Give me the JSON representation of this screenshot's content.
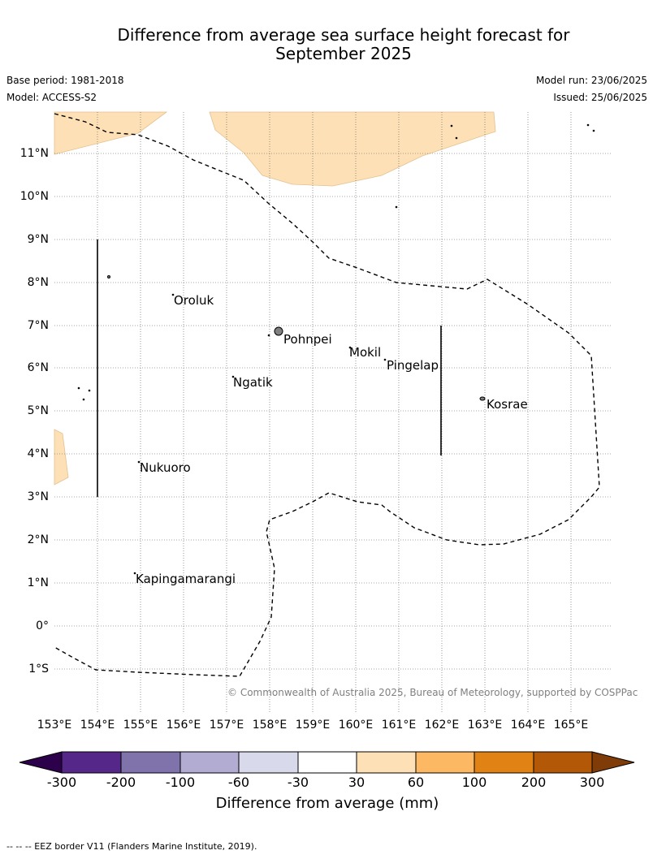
{
  "header": {
    "title_line1": "Difference from average sea surface height forecast for",
    "title_line2": "September 2025",
    "base_period": "Base period: 1981-2018",
    "model": "Model: ACCESS-S2",
    "model_run": "Model run: 23/06/2025",
    "issued": "Issued: 25/06/2025"
  },
  "map": {
    "lon_labels": [
      "153°E",
      "154°E",
      "155°E",
      "156°E",
      "157°E",
      "158°E",
      "159°E",
      "160°E",
      "161°E",
      "162°E",
      "163°E",
      "164°E",
      "165°E"
    ],
    "lat_labels": [
      "11°N",
      "10°N",
      "9°N",
      "8°N",
      "7°N",
      "6°N",
      "5°N",
      "4°N",
      "3°N",
      "2°N",
      "1°N",
      "0°",
      "1°S"
    ],
    "places": [
      "Oroluk",
      "Pohnpei",
      "Mokil",
      "Pingelap",
      "Ngatik",
      "Kosrae",
      "Nukuoro",
      "Kapingamarangi"
    ],
    "copyright": "© Commonwealth of Australia 2025, Bureau of Meteorology, supported by COSPPac",
    "fill_color": "#fde0b5",
    "grid": "dotted"
  },
  "colorbar": {
    "title": "Difference from average (mm)",
    "labels": [
      "-300",
      "-200",
      "-100",
      "-60",
      "-30",
      "30",
      "60",
      "100",
      "200",
      "300"
    ],
    "colors": [
      "#2d004b",
      "#542788",
      "#8073ac",
      "#b2abd2",
      "#d8daeb",
      "#ffffff",
      "#fee0b6",
      "#fdb863",
      "#e08214",
      "#b35806",
      "#7f3b08"
    ]
  },
  "footer": {
    "legend": "--  --  -- EEZ border V11 (Flanders Marine Institute, 2019)."
  }
}
